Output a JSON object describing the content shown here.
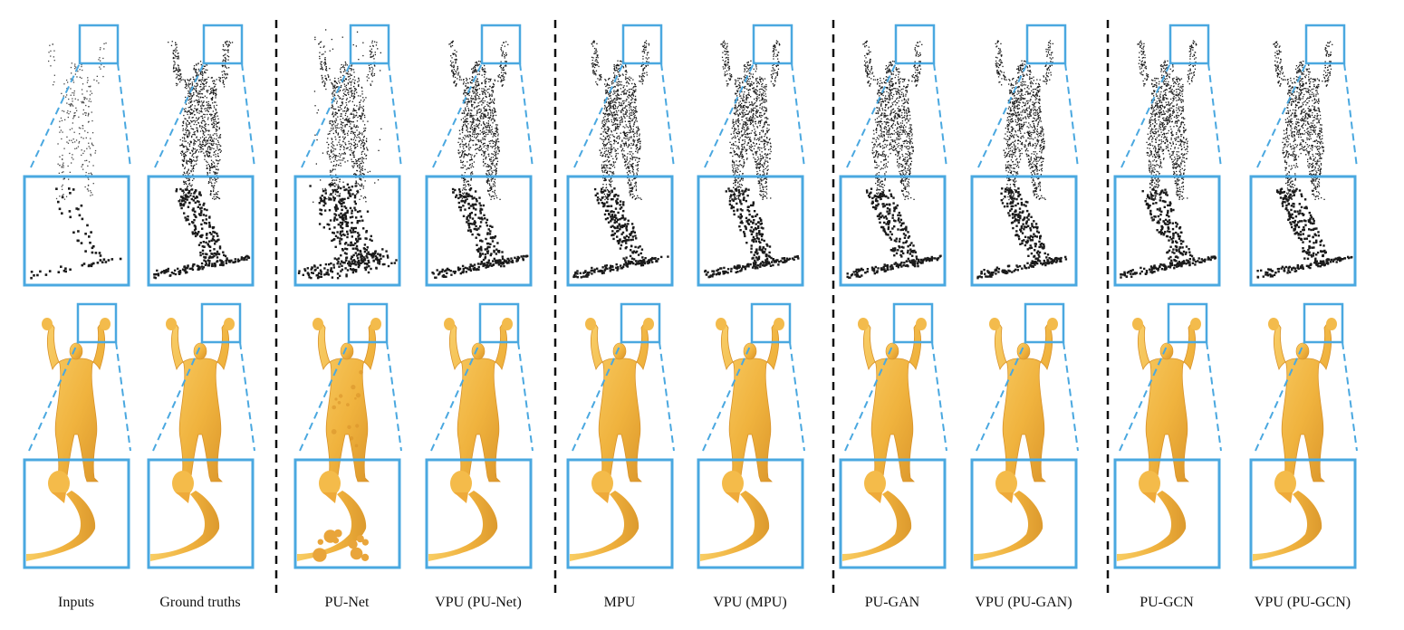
{
  "figure": {
    "columns": [
      {
        "label": "Inputs",
        "cloud": "sparse"
      },
      {
        "label": "Ground truths",
        "cloud": "dense"
      },
      {
        "label": "PU-Net",
        "cloud": "noisy"
      },
      {
        "label": "VPU (PU-Net)",
        "cloud": "dense"
      },
      {
        "label": "MPU",
        "cloud": "dense"
      },
      {
        "label": "VPU (MPU)",
        "cloud": "dense"
      },
      {
        "label": "PU-GAN",
        "cloud": "dense"
      },
      {
        "label": "VPU (PU-GAN)",
        "cloud": "dense"
      },
      {
        "label": "PU-GCN",
        "cloud": "dense"
      },
      {
        "label": "VPU (PU-GCN)",
        "cloud": "dense"
      }
    ],
    "group_separators_after_column": [
      2,
      4,
      6,
      8
    ],
    "colors": {
      "highlight_box": "#4aa8e0",
      "leader_line": "#4aa8e0",
      "point": "#1a1a1a",
      "mesh_body": "#f2b544",
      "mesh_shadow": "#d8922a",
      "separator": "#111111"
    }
  }
}
